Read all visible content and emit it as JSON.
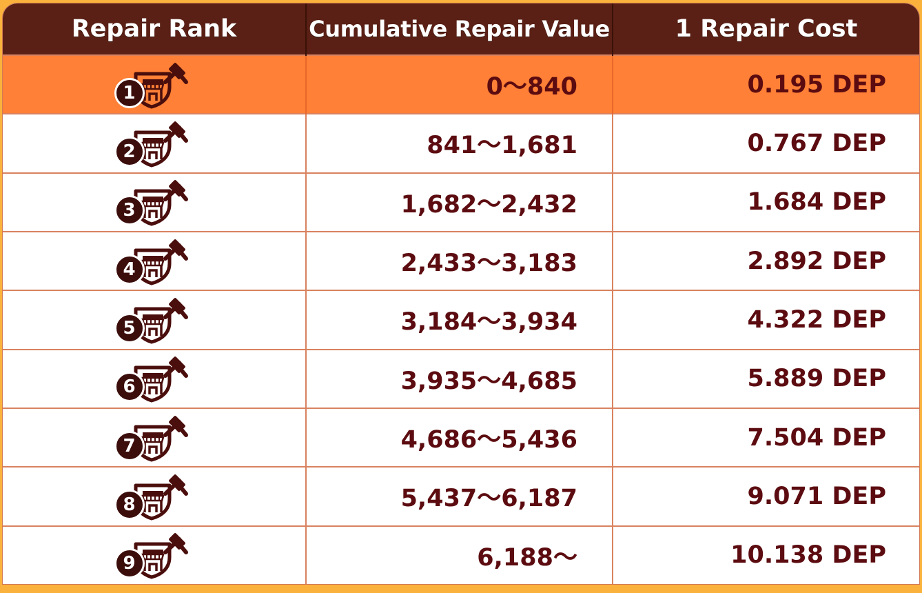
{
  "table": {
    "headers": [
      "Repair Rank",
      "Cumulative Repair Value",
      "1 Repair Cost"
    ],
    "highlight_color": "#ff8036",
    "header_color": "#5a2015",
    "text_color": "#5c0c10",
    "rows": [
      {
        "rank": "1",
        "icon": "shop-repair-icon",
        "value": "0～840",
        "cost": "0.195 DEP"
      },
      {
        "rank": "2",
        "icon": "shop-repair-icon",
        "value": "841～1,681",
        "cost": "0.767 DEP"
      },
      {
        "rank": "3",
        "icon": "shop-repair-icon",
        "value": "1,682～2,432",
        "cost": "1.684 DEP"
      },
      {
        "rank": "4",
        "icon": "shop-repair-icon",
        "value": "2,433～3,183",
        "cost": "2.892 DEP"
      },
      {
        "rank": "5",
        "icon": "shop-repair-icon",
        "value": "3,184～3,934",
        "cost": "4.322 DEP"
      },
      {
        "rank": "6",
        "icon": "shop-repair-icon",
        "value": "3,935～4,685",
        "cost": "5.889 DEP"
      },
      {
        "rank": "7",
        "icon": "shop-repair-icon",
        "value": "4,686～5,436",
        "cost": "7.504 DEP"
      },
      {
        "rank": "8",
        "icon": "shop-repair-icon",
        "value": "5,437～6,187",
        "cost": "9.071 DEP"
      },
      {
        "rank": "9",
        "icon": "shop-repair-icon",
        "value": "6,188～",
        "cost": "10.138 DEP"
      }
    ]
  }
}
